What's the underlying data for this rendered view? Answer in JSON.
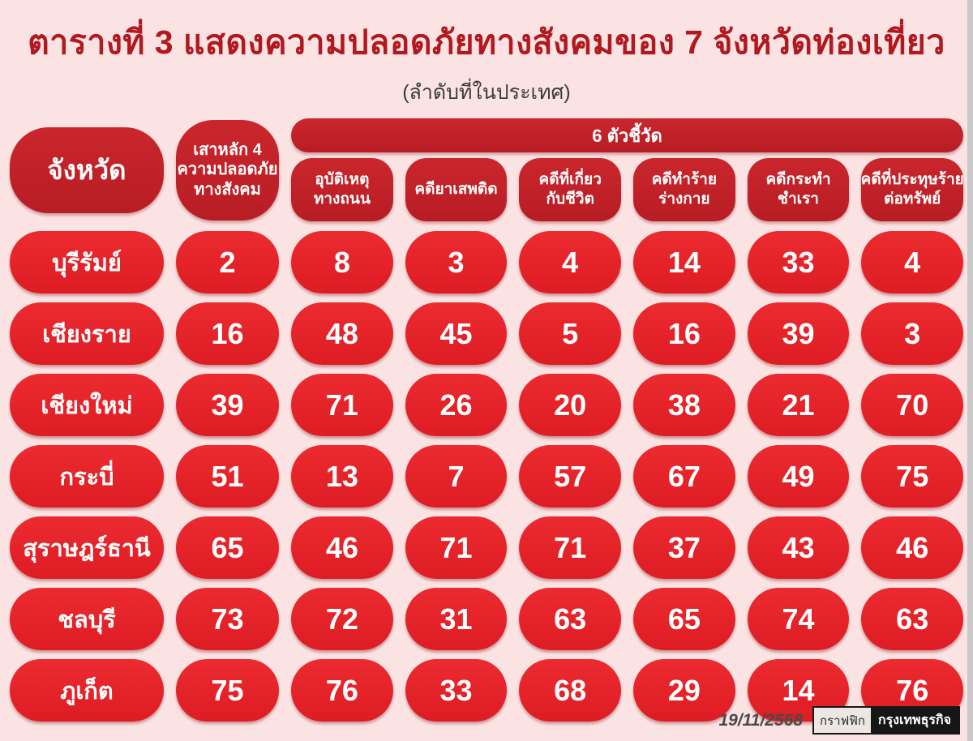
{
  "title": "ตารางที่ 3 แสดงความปลอดภัยทางสังคมของ 7 จังหวัดท่องเที่ยว",
  "subtitle": "(ลำดับที่ในประเทศ)",
  "colors": {
    "background": "#fbe3e3",
    "title_text": "#b0191f",
    "header_pill_red": "#c2232b",
    "data_pill_red": "#e8252b",
    "pill_text": "#ffffff"
  },
  "header": {
    "province_label": "จังหวัด",
    "pillar": {
      "lines": [
        "เสาหลัก 4",
        "ความปลอดภัย",
        "ทางสังคม"
      ]
    },
    "indicators_banner": "6 ตัวชี้วัด",
    "indicators": [
      {
        "lines": [
          "อุบัติเหตุ",
          "ทางถนน"
        ]
      },
      {
        "lines": [
          "คดียาเสพติด"
        ]
      },
      {
        "lines": [
          "คดีที่เกี่ยว",
          "กับชีวิต"
        ]
      },
      {
        "lines": [
          "คดีทำร้าย",
          "ร่างกาย"
        ]
      },
      {
        "lines": [
          "คดีกระทำ",
          "ชำเรา"
        ]
      },
      {
        "lines": [
          "คดีที่ประทุษร้าย",
          "ต่อทรัพย์"
        ]
      }
    ]
  },
  "chart_data": {
    "type": "table",
    "title": "ตารางที่ 3 แสดงความปลอดภัยทางสังคมของ 7 จังหวัดท่องเที่ยว",
    "subtitle": "(ลำดับที่ในประเทศ)",
    "columns": [
      "จังหวัด",
      "เสาหลัก 4 ความปลอดภัยทางสังคม",
      "อุบัติเหตุทางถนน",
      "คดียาเสพติด",
      "คดีที่เกี่ยวกับชีวิต",
      "คดีทำร้ายร่างกาย",
      "คดีกระทำชำเรา",
      "คดีที่ประทุษร้ายต่อทรัพย์"
    ],
    "rows": [
      {
        "province": "บุรีรัมย์",
        "values": [
          2,
          8,
          3,
          4,
          14,
          33,
          4
        ]
      },
      {
        "province": "เชียงราย",
        "values": [
          16,
          48,
          45,
          5,
          16,
          39,
          3
        ]
      },
      {
        "province": "เชียงใหม่",
        "values": [
          39,
          71,
          26,
          20,
          38,
          21,
          70
        ]
      },
      {
        "province": "กระบี่",
        "values": [
          51,
          13,
          7,
          57,
          67,
          49,
          75
        ]
      },
      {
        "province": "สุราษฎร์ธานี",
        "values": [
          65,
          46,
          71,
          71,
          37,
          43,
          46
        ]
      },
      {
        "province": "ชลบุรี",
        "values": [
          73,
          72,
          31,
          63,
          65,
          74,
          63
        ]
      },
      {
        "province": "ภูเก็ต",
        "values": [
          75,
          76,
          33,
          68,
          29,
          14,
          76
        ]
      }
    ]
  },
  "footer": {
    "date": "19/11/2568",
    "credit_label": "กราฟฟิก",
    "brand": "กรุงเทพธุรกิจ"
  }
}
